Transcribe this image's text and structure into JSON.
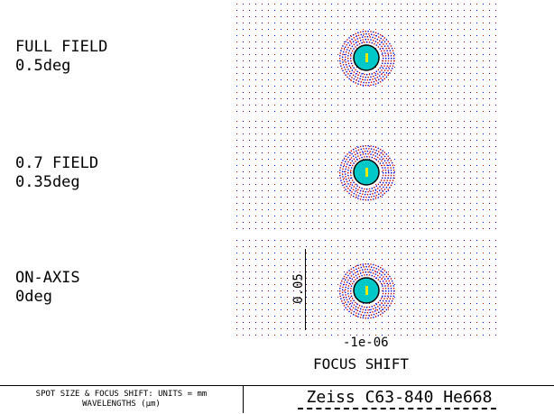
{
  "fields": [
    {
      "name": "FULL FIELD",
      "angle": "0.5deg"
    },
    {
      "name": "0.7 FIELD",
      "angle": "0.35deg"
    },
    {
      "name": "ON-AXIS",
      "angle": "0deg"
    }
  ],
  "scale_bar": {
    "value": "0.05"
  },
  "focus": {
    "value": "-1e-06",
    "label": "FOCUS SHIFT"
  },
  "footer": {
    "units_line": "SPOT SIZE & FOCUS SHIFT: UNITS = mm",
    "wavelengths_line": "WAVELENGTHS (µm)",
    "title": "Zeiss C63-840 He668"
  },
  "colors": {
    "grid_red": "#cc0000",
    "grid_blue": "#0000dd",
    "core": "#00c8c8",
    "center": "#e8e800",
    "ring": "#000000"
  }
}
